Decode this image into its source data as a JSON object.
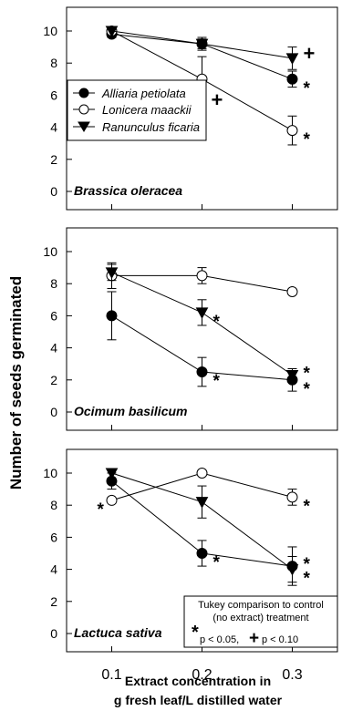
{
  "figure": {
    "ylabel": "Number of seeds germinated",
    "xlabel_line1": "Extract concentration in",
    "xlabel_line2": "g fresh leaf/L distilled water",
    "x_ticks": [
      "0.1",
      "0.2",
      "0.3"
    ],
    "y_ticks": [
      "0",
      "2",
      "4",
      "6",
      "8",
      "10"
    ]
  },
  "legend": {
    "entries": [
      {
        "marker": "filled-circle",
        "label": "Alliaria petiolata"
      },
      {
        "marker": "open-circle",
        "label": "Lonicera maackii"
      },
      {
        "marker": "filled-triangle-down",
        "label": "Ranunculus ficaria"
      }
    ]
  },
  "note": {
    "line1": "Tukey comparison to control",
    "line2": "(no extract) treatment",
    "sig1_symbol": "*",
    "sig1_text": "p < 0.05,",
    "sig2_symbol": "+",
    "sig2_text": "p < 0.10"
  },
  "chart_data": [
    {
      "type": "line",
      "title": "Brassica oleracea",
      "x": [
        0.1,
        0.2,
        0.3
      ],
      "ylim": [
        0,
        10
      ],
      "series": [
        {
          "name": "Alliaria petiolata",
          "marker": "filled-circle",
          "values": [
            9.8,
            9.2,
            7.0
          ],
          "err": [
            0.2,
            0.4,
            0.5
          ],
          "flags": [
            "",
            "",
            "*"
          ]
        },
        {
          "name": "Lonicera maackii",
          "marker": "open-circle",
          "values": [
            10.0,
            7.0,
            3.8
          ],
          "err": [
            0.0,
            1.4,
            0.9
          ],
          "flags": [
            "",
            "+",
            "*"
          ]
        },
        {
          "name": "Ranunculus ficaria",
          "marker": "filled-triangle-down",
          "values": [
            10.0,
            9.2,
            8.3
          ],
          "err": [
            0.0,
            0.3,
            0.7
          ],
          "flags": [
            "",
            "",
            "+"
          ]
        }
      ]
    },
    {
      "type": "line",
      "title": "Ocimum basilicum",
      "x": [
        0.1,
        0.2,
        0.3
      ],
      "ylim": [
        0,
        10
      ],
      "series": [
        {
          "name": "Alliaria petiolata",
          "marker": "filled-circle",
          "values": [
            6.0,
            2.5,
            2.0
          ],
          "err": [
            1.5,
            0.9,
            0.7
          ],
          "flags": [
            "",
            "*",
            "*"
          ]
        },
        {
          "name": "Lonicera maackii",
          "marker": "open-circle",
          "values": [
            8.5,
            8.5,
            7.5
          ],
          "err": [
            0.8,
            0.5,
            0.0
          ],
          "flags": [
            "",
            "",
            ""
          ]
        },
        {
          "name": "Ranunculus ficaria",
          "marker": "filled-triangle-down",
          "values": [
            8.7,
            6.2,
            2.3
          ],
          "err": [
            0.5,
            0.8,
            0.4
          ],
          "flags": [
            "",
            "*",
            "*"
          ]
        }
      ]
    },
    {
      "type": "line",
      "title": "Lactuca sativa",
      "x": [
        0.1,
        0.2,
        0.3
      ],
      "ylim": [
        0,
        10
      ],
      "series": [
        {
          "name": "Alliaria petiolata",
          "marker": "filled-circle",
          "values": [
            9.5,
            5.0,
            4.2
          ],
          "err": [
            0.5,
            0.8,
            1.2
          ],
          "flags": [
            "",
            "*",
            "*"
          ]
        },
        {
          "name": "Lonicera maackii",
          "marker": "open-circle",
          "values": [
            8.3,
            10.0,
            8.5
          ],
          "err": [
            0.0,
            0.0,
            0.5
          ],
          "flags": [
            "*",
            "",
            "*"
          ]
        },
        {
          "name": "Ranunculus ficaria",
          "marker": "filled-triangle-down",
          "values": [
            10.0,
            8.2,
            4.0
          ],
          "err": [
            0.0,
            1.0,
            0.8
          ],
          "flags": [
            "",
            "",
            "*"
          ]
        }
      ]
    }
  ]
}
